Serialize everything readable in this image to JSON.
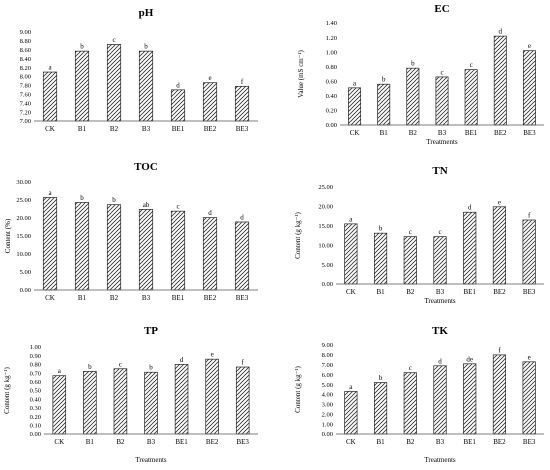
{
  "chart_data": [
    {
      "type": "bar",
      "title": "pH",
      "ylabel": "",
      "xlabel": "",
      "categories": [
        "CK",
        "B1",
        "B2",
        "B3",
        "BE1",
        "BE2",
        "BE3"
      ],
      "values": [
        8.1,
        8.57,
        8.72,
        8.57,
        7.7,
        7.86,
        7.78
      ],
      "letters": [
        "a",
        "b",
        "c",
        "b",
        "d",
        "e",
        "f"
      ],
      "ylim": [
        7.0,
        9.0
      ],
      "yticks": [
        "7.00",
        "7.20",
        "7.40",
        "7.60",
        "7.80",
        "8.00",
        "8.20",
        "8.40",
        "8.60",
        "8.80",
        "9.00"
      ],
      "grid": false,
      "bar_pattern": "diagonal-hatch"
    },
    {
      "type": "bar",
      "title": "EC",
      "ylabel": "Value (mS cm⁻¹)",
      "xlabel": "Treatments",
      "categories": [
        "CK",
        "B1",
        "B2",
        "B3",
        "BE1",
        "BE2",
        "BE3"
      ],
      "values": [
        0.51,
        0.56,
        0.78,
        0.66,
        0.76,
        1.22,
        1.02
      ],
      "letters": [
        "a",
        "b",
        "b",
        "c",
        "c",
        "d",
        "e"
      ],
      "ylim": [
        0.0,
        1.4
      ],
      "yticks": [
        "0.00",
        "0.20",
        "0.40",
        "0.60",
        "0.80",
        "1.00",
        "1.20",
        "1.40"
      ],
      "grid": false,
      "bar_pattern": "diagonal-hatch"
    },
    {
      "type": "bar",
      "title": "TOC",
      "ylabel": "Content (%)",
      "xlabel": "",
      "categories": [
        "CK",
        "B1",
        "B2",
        "B3",
        "BE1",
        "BE2",
        "BE3"
      ],
      "values": [
        25.7,
        24.3,
        23.7,
        22.4,
        21.9,
        20.1,
        18.9
      ],
      "letters": [
        "a",
        "b",
        "b",
        "ab",
        "c",
        "d",
        "d"
      ],
      "ylim": [
        0,
        30
      ],
      "yticks": [
        "0.00",
        "5.00",
        "10.00",
        "15.00",
        "20.00",
        "25.00",
        "30.00"
      ],
      "grid": false,
      "bar_pattern": "diagonal-hatch"
    },
    {
      "type": "bar",
      "title": "TN",
      "ylabel": "Content (g kg⁻¹)",
      "xlabel": "Treatments",
      "categories": [
        "CK",
        "B1",
        "B2",
        "B3",
        "BE1",
        "BE2",
        "BE3"
      ],
      "values": [
        15.5,
        13.1,
        12.2,
        12.2,
        18.5,
        19.9,
        16.5
      ],
      "letters": [
        "a",
        "b",
        "c",
        "c",
        "d",
        "e",
        "f"
      ],
      "ylim": [
        0,
        25
      ],
      "yticks": [
        "0.00",
        "5.00",
        "10.00",
        "15.00",
        "20.00",
        "25.00"
      ],
      "grid": false,
      "bar_pattern": "diagonal-hatch"
    },
    {
      "type": "bar",
      "title": "TP",
      "ylabel": "Content (g kg⁻¹)",
      "xlabel": "Treatments",
      "categories": [
        "CK",
        "B1",
        "B2",
        "B3",
        "BE1",
        "BE2",
        "BE3"
      ],
      "values": [
        0.67,
        0.72,
        0.75,
        0.71,
        0.8,
        0.86,
        0.77
      ],
      "letters": [
        "a",
        "b",
        "c",
        "b",
        "d",
        "e",
        "f"
      ],
      "ylim": [
        0.0,
        1.0
      ],
      "yticks": [
        "0.00",
        "0.10",
        "0.20",
        "0.30",
        "0.40",
        "0.50",
        "0.60",
        "0.70",
        "0.80",
        "0.90",
        "1.00"
      ],
      "grid": false,
      "bar_pattern": "diagonal-hatch"
    },
    {
      "type": "bar",
      "title": "TK",
      "ylabel": "Content (g kg⁻¹)",
      "xlabel": "Treatments",
      "categories": [
        "CK",
        "B1",
        "B2",
        "B3",
        "BE1",
        "BE2",
        "BE3"
      ],
      "values": [
        4.3,
        5.2,
        6.2,
        6.9,
        7.1,
        8.0,
        7.3
      ],
      "letters": [
        "a",
        "b",
        "c",
        "d",
        "de",
        "f",
        "e"
      ],
      "ylim": [
        0.0,
        9.0
      ],
      "yticks": [
        "0.00",
        "1.00",
        "2.00",
        "3.00",
        "4.00",
        "5.00",
        "6.00",
        "7.00",
        "8.00",
        "9.00"
      ],
      "grid": false,
      "bar_pattern": "diagonal-hatch"
    }
  ]
}
